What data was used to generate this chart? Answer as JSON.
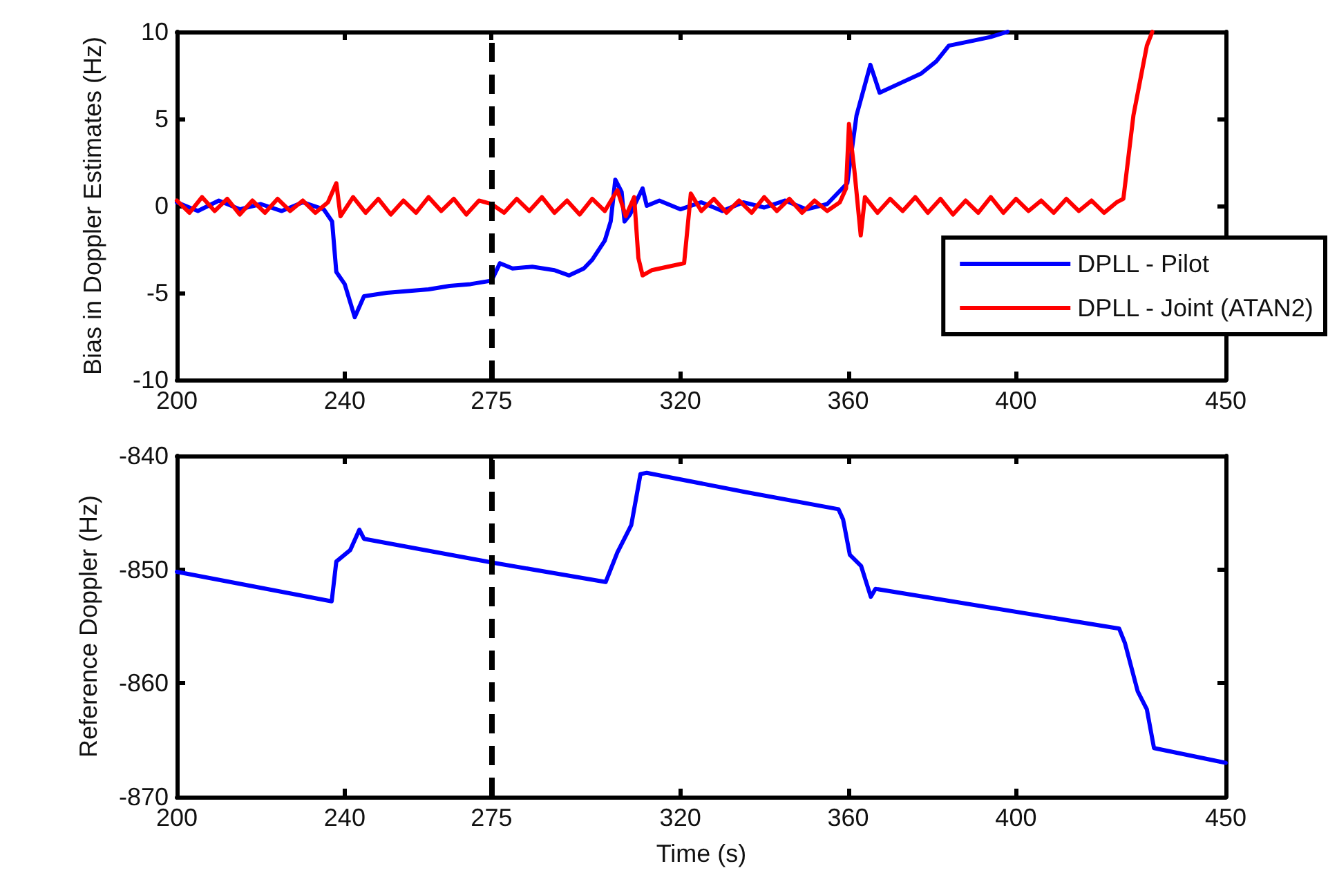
{
  "chart_data": [
    {
      "type": "line",
      "ylabel": "Bias in Doppler Estimates (Hz)",
      "xlim": [
        200,
        450
      ],
      "xticks": [
        200,
        240,
        275,
        320,
        360,
        400,
        450
      ],
      "ylim": [
        -10,
        10
      ],
      "yticks": [
        -10,
        -5,
        0,
        5,
        10
      ],
      "grid": false,
      "legend": "bottom right",
      "marker": "none",
      "line_style": "solid",
      "ref_lines": [
        {
          "axis": "x",
          "value": 275,
          "color": "#000000",
          "line_style": "dashed"
        }
      ],
      "series": [
        {
          "name": "DPLL - Pilot",
          "color": "#0000ff",
          "x": [
            200,
            205,
            210,
            215,
            220,
            225,
            230,
            235,
            237,
            238,
            240,
            242.4,
            244.6,
            250,
            255,
            260,
            265,
            270,
            275,
            277,
            280,
            284.7,
            290,
            293.5,
            297,
            299,
            302,
            303.4,
            304.5,
            306,
            306.7,
            308,
            311,
            312,
            315,
            320,
            325,
            330,
            335,
            340,
            345,
            350,
            355,
            359.8,
            362,
            365.3,
            367.5,
            372,
            377.4,
            381,
            384,
            390,
            393.9,
            398
          ],
          "values": [
            0.2,
            -0.3,
            0.3,
            -0.2,
            0.1,
            -0.3,
            0.2,
            -0.2,
            -0.9,
            -3.8,
            -4.5,
            -6.4,
            -5.2,
            -5.0,
            -4.9,
            -4.8,
            -4.6,
            -4.5,
            -4.3,
            -3.3,
            -3.6,
            -3.5,
            -3.7,
            -4.0,
            -3.6,
            -3.1,
            -2.0,
            -0.9,
            1.5,
            0.8,
            -0.9,
            -0.5,
            1.0,
            0,
            0.3,
            -0.2,
            0.2,
            -0.3,
            0.2,
            -0.1,
            0.3,
            -0.2,
            0.1,
            1.3,
            5.2,
            8.1,
            6.5,
            7.0,
            7.6,
            8.3,
            9.2,
            9.5,
            9.7,
            10
          ]
        },
        {
          "name": "DPLL - Joint (ATAN2)",
          "color": "#ff0000",
          "x": [
            200,
            203,
            206,
            209,
            212,
            215,
            218,
            221,
            224,
            227,
            230,
            233,
            236,
            238,
            239,
            242,
            245,
            248,
            251,
            254,
            257,
            260,
            263,
            266,
            269,
            272,
            275,
            278,
            281,
            284,
            287,
            290,
            293,
            296,
            299,
            302,
            305,
            307,
            309,
            310,
            311,
            313.2,
            317,
            320.9,
            322.5,
            325,
            328,
            331,
            334,
            337,
            340,
            343,
            346,
            349,
            352,
            355,
            358,
            359.5,
            360.2,
            361.5,
            363,
            364,
            367,
            370,
            373,
            376,
            379,
            382,
            385,
            388,
            391,
            394,
            397,
            400,
            403,
            406,
            409,
            412,
            415,
            418,
            421,
            424,
            425.6,
            428,
            431.2,
            432.5
          ],
          "values": [
            0.3,
            -0.4,
            0.5,
            -0.3,
            0.4,
            -0.5,
            0.3,
            -0.4,
            0.4,
            -0.3,
            0.3,
            -0.4,
            0.2,
            1.3,
            -0.6,
            0.5,
            -0.4,
            0.4,
            -0.5,
            0.3,
            -0.4,
            0.5,
            -0.3,
            0.4,
            -0.5,
            0.3,
            0.1,
            -0.4,
            0.4,
            -0.3,
            0.5,
            -0.4,
            0.3,
            -0.5,
            0.4,
            -0.3,
            0.9,
            -0.6,
            0.5,
            -3.0,
            -4.0,
            -3.7,
            -3.5,
            -3.3,
            0.7,
            -0.3,
            0.4,
            -0.4,
            0.3,
            -0.4,
            0.5,
            -0.3,
            0.4,
            -0.4,
            0.3,
            -0.3,
            0.2,
            1.0,
            4.7,
            2.0,
            -1.7,
            0.5,
            -0.4,
            0.4,
            -0.3,
            0.5,
            -0.4,
            0.4,
            -0.5,
            0.3,
            -0.4,
            0.5,
            -0.4,
            0.4,
            -0.3,
            0.3,
            -0.4,
            0.4,
            -0.3,
            0.3,
            -0.4,
            0.2,
            0.4,
            5.2,
            9.2,
            10
          ]
        }
      ]
    },
    {
      "type": "line",
      "xlabel": "Time (s)",
      "ylabel": "Reference Doppler (Hz)",
      "xlim": [
        200,
        450
      ],
      "xticks": [
        200,
        240,
        275,
        320,
        360,
        400,
        450
      ],
      "ylim": [
        -870,
        -840
      ],
      "yticks": [
        -870,
        -860,
        -850,
        -840
      ],
      "grid": false,
      "legend": false,
      "marker": "none",
      "line_style": "solid",
      "ref_lines": [
        {
          "axis": "x",
          "value": 275,
          "color": "#000000",
          "line_style": "dashed"
        }
      ],
      "series": [
        {
          "color": "#0000ff",
          "x": [
            200,
            236.9,
            238,
            241.3,
            243.5,
            244.6,
            275.3,
            302.2,
            305,
            308.3,
            310.5,
            312,
            335.7,
            357.7,
            358.8,
            360.4,
            363.1,
            365.4,
            366.5,
            424.6,
            426,
            429,
            431.2,
            432.9,
            448.7,
            450
          ],
          "values": [
            -850.2,
            -852.8,
            -849.3,
            -848.3,
            -846.5,
            -847.3,
            -849.4,
            -851.1,
            -848.5,
            -846.1,
            -841.6,
            -841.5,
            -843.2,
            -844.7,
            -845.6,
            -848.7,
            -849.7,
            -852.4,
            -851.7,
            -855.2,
            -856.5,
            -860.7,
            -862.3,
            -865.7,
            -866.9,
            -867
          ]
        }
      ]
    }
  ]
}
